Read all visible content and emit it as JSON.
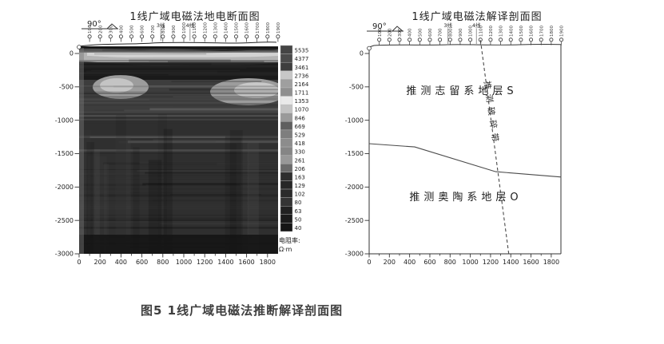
{
  "figure": {
    "caption": "图5 1线广域电磁法推断解译剖面图"
  },
  "shared": {
    "station_labels": [
      "100",
      "200",
      "300",
      "400",
      "500",
      "600",
      "700",
      "800",
      "900",
      "1000",
      "1100",
      "1200",
      "1300",
      "1400",
      "1500",
      "1600",
      "1700",
      "1800",
      "1900"
    ],
    "x_tick_labels": [
      "0",
      "200",
      "400",
      "600",
      "800",
      "1000",
      "1200",
      "1400",
      "1600",
      "1800"
    ],
    "y_tick_labels": [
      "0",
      "-500",
      "-1000",
      "-1500",
      "-2000",
      "-2500",
      "-3000"
    ],
    "crosslines": [
      {
        "label": "3线",
        "position_m": 780
      },
      {
        "label": "4线",
        "position_m": 1060
      }
    ]
  },
  "left_panel": {
    "title": "1线广域电磁法地电断面图",
    "azimuth_label": "90°",
    "colorbar": {
      "unit_line1": "电阻率:",
      "unit_line2": "Ω·m",
      "values": [
        "5535",
        "4377",
        "3461",
        "2736",
        "2164",
        "1711",
        "1353",
        "1070",
        "846",
        "669",
        "529",
        "418",
        "330",
        "261",
        "206",
        "163",
        "129",
        "102",
        "80",
        "63",
        "50",
        "40"
      ],
      "shades": [
        "#454545",
        "#4b4b4b",
        "#3e3e3e",
        "#c7c7c7",
        "#9f9f9f",
        "#8f8f8f",
        "#eaeaea",
        "#c3c3c3",
        "#9a9a9a",
        "#5f5f5f",
        "#7e7e7e",
        "#8c8c8c",
        "#858585",
        "#989898",
        "#6b6b6b",
        "#2f2f2f",
        "#272727",
        "#2b2b2b",
        "#343434",
        "#212121",
        "#1b1b1b",
        "#151515"
      ]
    }
  },
  "right_panel": {
    "title": "1线广域电磁法解译剖面图",
    "azimuth_label": "90°",
    "labels": {
      "upper_layer": "推测志留系地层S",
      "lower_layer": "推测奥陶系地层O",
      "fault": "推测破碎带"
    },
    "boundary_points_m": [
      [
        0,
        -1350
      ],
      [
        450,
        -1400
      ],
      [
        1250,
        -1770
      ],
      [
        1900,
        -1850
      ]
    ],
    "fault_line_m": [
      [
        1100,
        200
      ],
      [
        1380,
        -3000
      ]
    ]
  }
}
